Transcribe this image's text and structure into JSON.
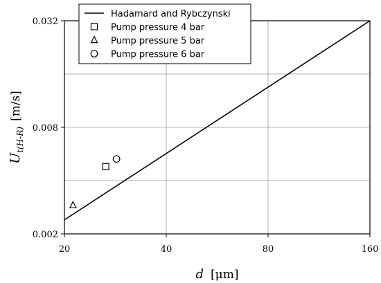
{
  "chart_data": {
    "type": "scatter",
    "xlabel": {
      "symbol": "d",
      "unit": "[μm]"
    },
    "ylabel": {
      "symbol": "U",
      "subscript": "t(H-R)",
      "unit": "[m/s]"
    },
    "xscale": "log2",
    "yscale": "log2",
    "xlim": [
      20,
      160
    ],
    "ylim": [
      0.002,
      0.032
    ],
    "x_ticks": [
      20,
      40,
      80,
      160
    ],
    "x_tick_labels": [
      "20",
      "40",
      "80",
      "160"
    ],
    "y_ticks": [
      0.002,
      0.008,
      0.032
    ],
    "y_tick_labels": [
      "0.002",
      "0.008",
      "0.032"
    ],
    "grid": true,
    "legend_position": "top-left",
    "series": [
      {
        "name": "Hadamard and Rybczynski",
        "kind": "line",
        "x": [
          20,
          160
        ],
        "y": [
          0.0024,
          0.032
        ]
      },
      {
        "name": "Pump pressure 4 bar",
        "kind": "marker",
        "marker": "square",
        "x": [
          26.5
        ],
        "y": [
          0.0048
        ]
      },
      {
        "name": "Pump pressure 5 bar",
        "kind": "marker",
        "marker": "triangle",
        "x": [
          21.2
        ],
        "y": [
          0.0029
        ]
      },
      {
        "name": "Pump pressure 6 bar",
        "kind": "marker",
        "marker": "circle",
        "x": [
          28.5
        ],
        "y": [
          0.0053
        ]
      }
    ]
  }
}
